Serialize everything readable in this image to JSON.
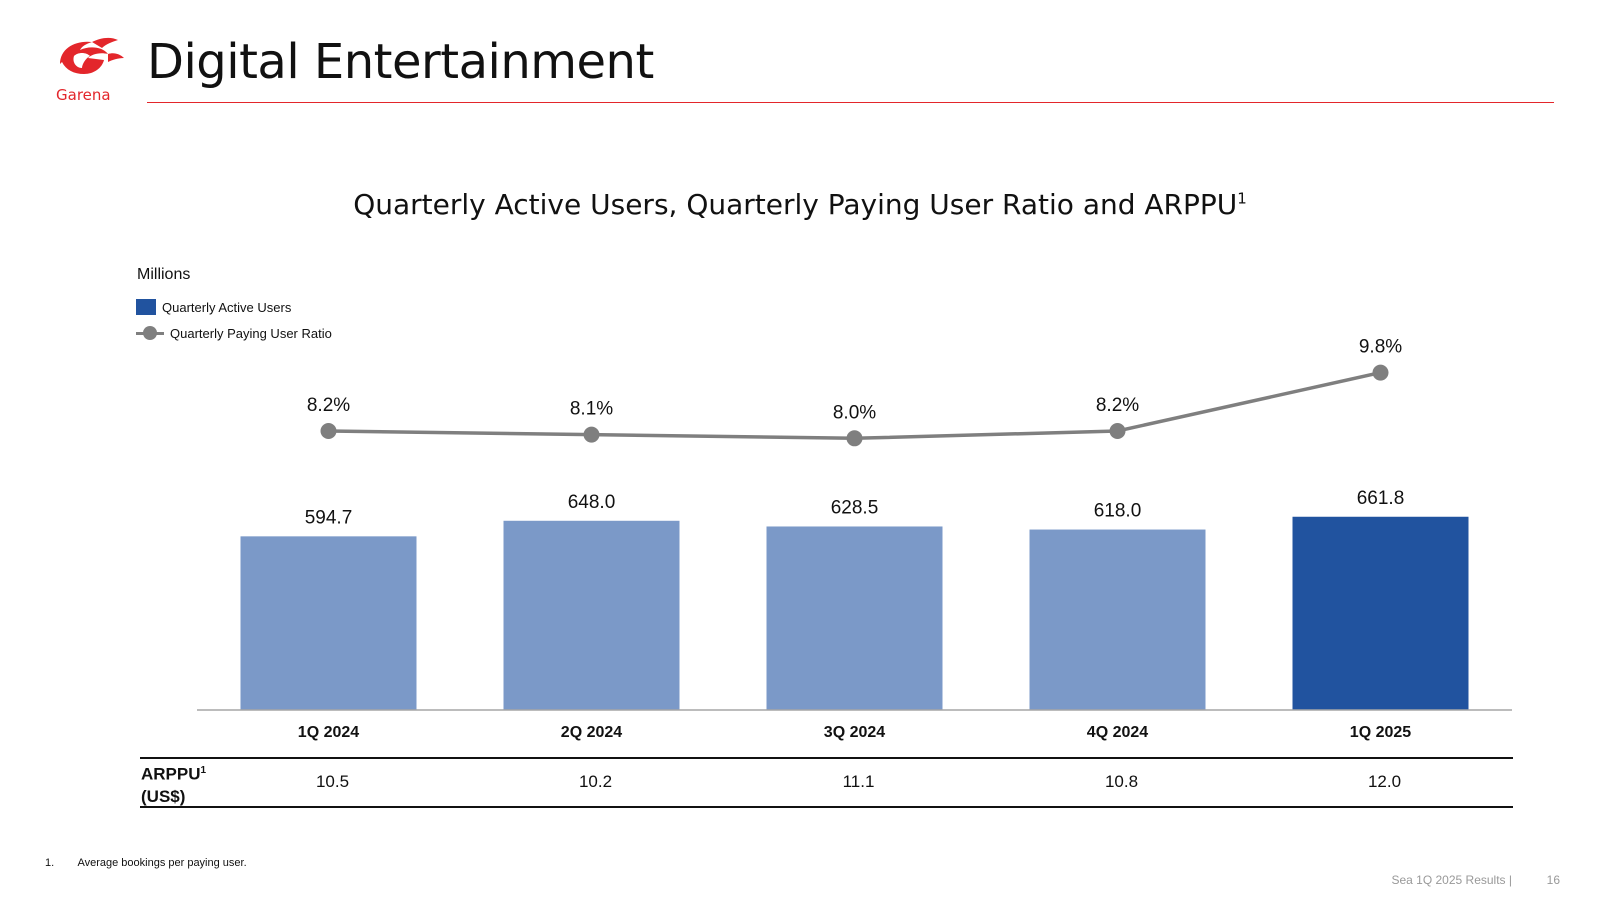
{
  "brand": {
    "logo_text": "Garena",
    "accent_color": "#e3262b"
  },
  "header": {
    "title": "Digital Entertainment"
  },
  "chart_data": {
    "type": "bar",
    "title": "Quarterly Active Users, Quarterly Paying User Ratio and ARPPU",
    "title_superscript": "1",
    "unit": "Millions",
    "categories": [
      "1Q 2024",
      "2Q 2024",
      "3Q 2024",
      "4Q 2024",
      "1Q 2025"
    ],
    "series": [
      {
        "name": "Quarterly Active Users",
        "type": "bar",
        "values": [
          594.7,
          648.0,
          628.5,
          618.0,
          661.8
        ],
        "labels": [
          "594.7",
          "648.0",
          "628.5",
          "618.0",
          "661.8"
        ],
        "colors": [
          "#7b99c8",
          "#7b99c8",
          "#7b99c8",
          "#7b99c8",
          "#21539f"
        ]
      },
      {
        "name": "Quarterly Paying User Ratio",
        "type": "line",
        "values": [
          8.2,
          8.1,
          8.0,
          8.2,
          9.8
        ],
        "labels": [
          "8.2%",
          "8.1%",
          "8.0%",
          "8.2%",
          "9.8%"
        ],
        "color": "#7f7f7f"
      }
    ],
    "legend": "top-left",
    "grid": false
  },
  "arppu": {
    "label_line1": "ARPPU",
    "label_sup": "1",
    "label_line2": "(US$)",
    "values": [
      "10.5",
      "10.2",
      "11.1",
      "10.8",
      "12.0"
    ]
  },
  "footnote": {
    "number": "1.",
    "text": "Average bookings per paying user."
  },
  "footer": {
    "source": "Sea 1Q 2025 Results |",
    "page": "16"
  }
}
